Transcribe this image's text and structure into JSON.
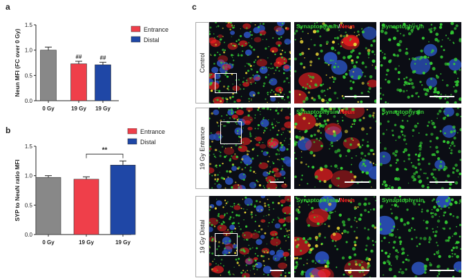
{
  "panels": {
    "a": "a",
    "b": "b",
    "c": "c"
  },
  "colors": {
    "gray": "#888888",
    "entrance": "#ef3f4a",
    "distal": "#1f47a6",
    "synaptophysin": "#33cc33",
    "neun": "#ff2020",
    "sep": "#ffffff"
  },
  "chart_data": [
    {
      "type": "bar",
      "panel": "a",
      "ylabel": "Neun MFI (FC over 0 Gy)",
      "ylim": [
        0,
        1.5
      ],
      "yticks": [
        "0.0",
        "0.5",
        "1.0",
        "1.5"
      ],
      "categories": [
        "0 Gy",
        "19 Gy",
        "19 Gy"
      ],
      "values": [
        1.0,
        0.73,
        0.71
      ],
      "errors": [
        0.06,
        0.05,
        0.05
      ],
      "groups": [
        "control",
        "entrance",
        "distal"
      ],
      "annotations": [
        "",
        "##",
        "##"
      ],
      "legend": [
        {
          "name": "Entrance",
          "group": "entrance"
        },
        {
          "name": "Distal",
          "group": "distal"
        }
      ]
    },
    {
      "type": "bar",
      "panel": "b",
      "ylabel": "SYP to NeuN ratio MFI",
      "ylim": [
        0,
        1.5
      ],
      "yticks": [
        "0.0",
        "0.5",
        "1.0",
        "1.5"
      ],
      "categories": [
        "0 Gy",
        "19 Gy",
        "19 Gy"
      ],
      "values": [
        0.97,
        0.94,
        1.18
      ],
      "errors": [
        0.03,
        0.04,
        0.07
      ],
      "groups": [
        "control",
        "entrance",
        "distal"
      ],
      "significance": {
        "from": 1,
        "to": 2,
        "label": "**"
      },
      "legend": [
        {
          "name": "Entrance",
          "group": "entrance"
        },
        {
          "name": "Distal",
          "group": "distal"
        }
      ]
    }
  ],
  "micrographs": {
    "rows": [
      {
        "label": "Control",
        "seed": 11,
        "merge_density": "high"
      },
      {
        "label": "19 Gy Entrance",
        "seed": 29,
        "merge_density": "med"
      },
      {
        "label": "19 Gy Distal",
        "seed": 47,
        "merge_density": "low"
      }
    ],
    "merge_label": {
      "part1": "Synaptophysin",
      "sep": "/",
      "part2": "Neun"
    },
    "single_label": "Synaptophysin"
  }
}
